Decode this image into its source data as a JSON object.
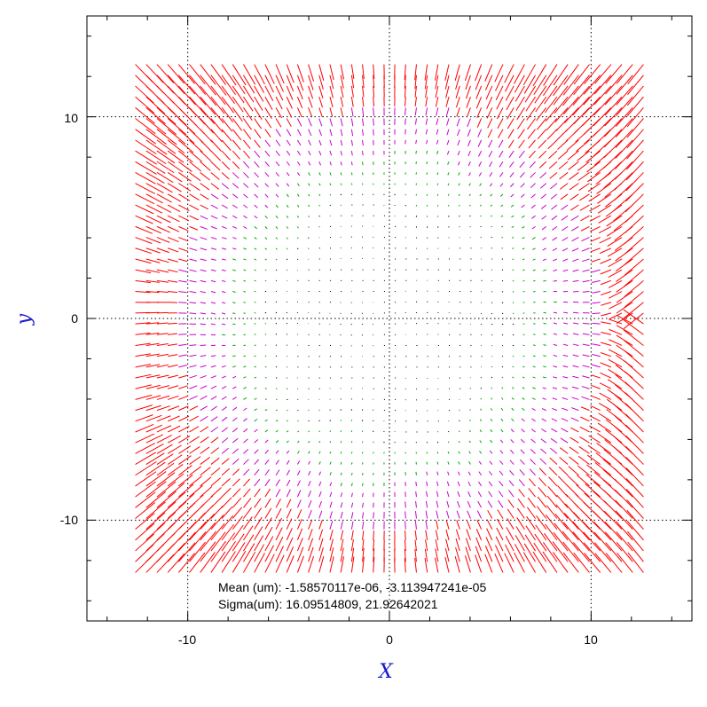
{
  "chart_data": {
    "type": "vector-field",
    "xlabel": "X",
    "ylabel": "y",
    "xlim": [
      -15,
      15
    ],
    "ylim": [
      -15,
      15
    ],
    "x_ticks": [
      -10,
      0,
      10
    ],
    "y_ticks": [
      -10,
      0,
      10
    ],
    "x_tick_labels": [
      "-10",
      "0",
      "10"
    ],
    "y_tick_labels": [
      "-10",
      "0",
      "10"
    ],
    "grid": true,
    "grid_style": "dotted",
    "grid_values": [
      -10,
      0,
      10
    ],
    "field_extent": {
      "x": [
        -12.6,
        12.6
      ],
      "y": [
        -12.6,
        12.6
      ]
    },
    "grid_count": 48,
    "colors": {
      "large_vectors": "#ff0000",
      "medium_vectors": "#cc00cc",
      "small_vectors": "#00aa00",
      "tiny_vectors": "#000000",
      "axis_titles": "#1a1acc"
    },
    "annotations": {
      "mean": "Mean (um): -1.58570117e-06, -3.113947241e-05",
      "sigma": "Sigma(um): 16.09514809, 21.92642021"
    }
  }
}
